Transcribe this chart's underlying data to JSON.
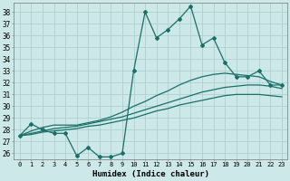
{
  "title": "",
  "xlabel": "Humidex (Indice chaleur)",
  "bg_color": "#cce8e8",
  "line_color": "#1a7068",
  "grid_color": "#aacccc",
  "xlim": [
    -0.5,
    23.5
  ],
  "ylim": [
    25.5,
    38.8
  ],
  "xticks": [
    0,
    1,
    2,
    3,
    4,
    5,
    6,
    7,
    8,
    9,
    10,
    11,
    12,
    13,
    14,
    15,
    16,
    17,
    18,
    19,
    20,
    21,
    22,
    23
  ],
  "yticks": [
    26,
    27,
    28,
    29,
    30,
    31,
    32,
    33,
    34,
    35,
    36,
    37,
    38
  ],
  "series": [
    {
      "x": [
        0,
        1,
        2,
        3,
        4,
        5,
        6,
        7,
        8,
        9,
        10,
        11,
        12,
        13,
        14,
        15,
        16,
        17,
        18,
        19,
        20,
        21,
        22,
        23
      ],
      "y": [
        27.5,
        28.5,
        28.0,
        27.7,
        27.7,
        25.8,
        26.5,
        25.7,
        25.7,
        26.0,
        33.0,
        38.0,
        35.8,
        36.5,
        37.4,
        38.5,
        35.2,
        35.8,
        33.7,
        32.5,
        32.5,
        33.0,
        31.8,
        31.8
      ],
      "marker": "D",
      "markersize": 2,
      "linewidth": 0.9
    },
    {
      "x": [
        0,
        1,
        2,
        3,
        4,
        5,
        6,
        7,
        8,
        9,
        10,
        11,
        12,
        13,
        14,
        15,
        16,
        17,
        18,
        19,
        20,
        21,
        22,
        23
      ],
      "y": [
        27.5,
        27.9,
        28.2,
        28.4,
        28.4,
        28.4,
        28.6,
        28.8,
        29.1,
        29.5,
        30.0,
        30.4,
        30.9,
        31.3,
        31.8,
        32.2,
        32.5,
        32.7,
        32.8,
        32.7,
        32.6,
        32.5,
        32.1,
        31.8
      ],
      "marker": null,
      "markersize": 0,
      "linewidth": 0.9
    },
    {
      "x": [
        0,
        1,
        2,
        3,
        4,
        5,
        6,
        7,
        8,
        9,
        10,
        11,
        12,
        13,
        14,
        15,
        16,
        17,
        18,
        19,
        20,
        21,
        22,
        23
      ],
      "y": [
        27.5,
        27.7,
        27.9,
        28.1,
        28.2,
        28.3,
        28.5,
        28.7,
        28.9,
        29.1,
        29.4,
        29.7,
        30.0,
        30.3,
        30.6,
        30.9,
        31.2,
        31.4,
        31.6,
        31.7,
        31.8,
        31.8,
        31.7,
        31.5
      ],
      "marker": null,
      "markersize": 0,
      "linewidth": 0.9
    },
    {
      "x": [
        0,
        1,
        2,
        3,
        4,
        5,
        6,
        7,
        8,
        9,
        10,
        11,
        12,
        13,
        14,
        15,
        16,
        17,
        18,
        19,
        20,
        21,
        22,
        23
      ],
      "y": [
        27.5,
        27.6,
        27.8,
        27.9,
        28.0,
        28.1,
        28.3,
        28.4,
        28.6,
        28.8,
        29.0,
        29.3,
        29.6,
        29.8,
        30.1,
        30.3,
        30.5,
        30.7,
        30.9,
        31.0,
        31.0,
        31.0,
        30.9,
        30.8
      ],
      "marker": null,
      "markersize": 0,
      "linewidth": 0.9
    }
  ]
}
